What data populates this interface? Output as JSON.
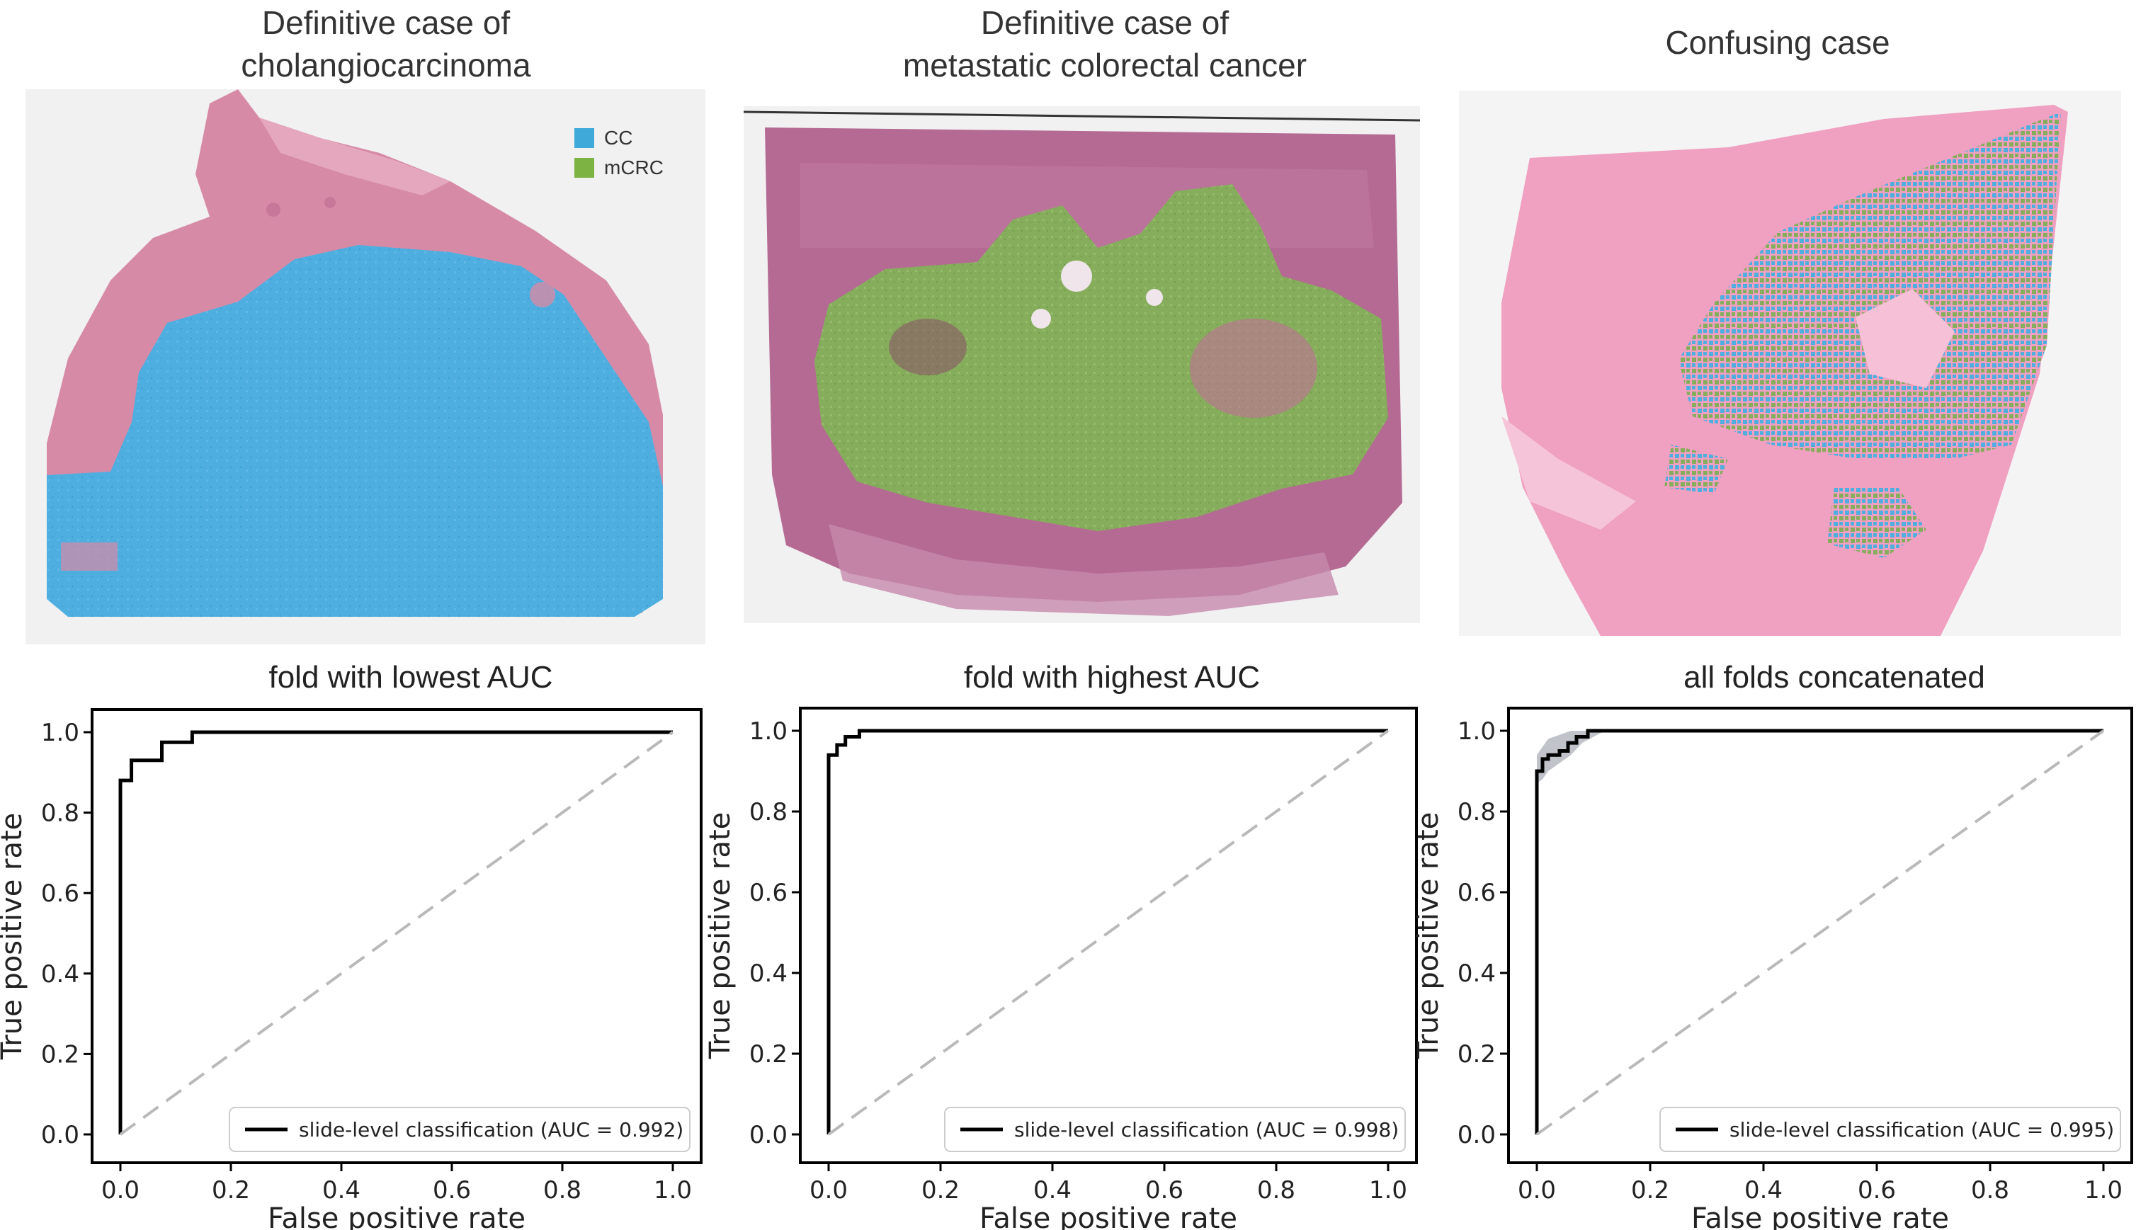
{
  "panels": [
    {
      "title_line1": "Definitive case of",
      "title_line2": "cholangiocarcinoma"
    },
    {
      "title_line1": "Definitive case of",
      "title_line2": "metastatic colorectal cancer"
    },
    {
      "title_line1": "Confusing case",
      "title_line2": ""
    }
  ],
  "legend": {
    "items": [
      {
        "label": "CC",
        "color": "#3fa9d9"
      },
      {
        "label": "mCRC",
        "color": "#7cb342"
      }
    ]
  },
  "colors": {
    "cc": "#4eaee0",
    "mcrc": "#86ad5c",
    "tissue_pink": "#d78aa6",
    "tissue_purple": "#b56a93",
    "tissue_bright": "#f0a0c0"
  },
  "chart_data": [
    {
      "type": "line",
      "title": "fold with lowest AUC",
      "xlabel": "False positive rate",
      "ylabel": "True positive rate",
      "xlim": [
        0,
        1
      ],
      "ylim": [
        0,
        1
      ],
      "xticks": [
        "0.0",
        "0.2",
        "0.4",
        "0.6",
        "0.8",
        "1.0"
      ],
      "yticks": [
        "0.0",
        "0.2",
        "0.4",
        "0.6",
        "0.8",
        "1.0"
      ],
      "series": [
        {
          "name": "slide-level classification (AUC = 0.992)",
          "x": [
            0,
            0,
            0.02,
            0.02,
            0.075,
            0.075,
            0.13,
            0.13,
            1.0
          ],
          "y": [
            0,
            0.88,
            0.88,
            0.93,
            0.93,
            0.975,
            0.975,
            1.0,
            1.0
          ]
        },
        {
          "name": "chance",
          "dashed": true,
          "x": [
            0,
            1
          ],
          "y": [
            0,
            1
          ]
        }
      ],
      "legend_label": "slide-level classification (AUC = 0.992)"
    },
    {
      "type": "line",
      "title": "fold with highest AUC",
      "xlabel": "False positive rate",
      "ylabel": "True positive rate",
      "xlim": [
        0,
        1
      ],
      "ylim": [
        0,
        1
      ],
      "xticks": [
        "0.0",
        "0.2",
        "0.4",
        "0.6",
        "0.8",
        "1.0"
      ],
      "yticks": [
        "0.0",
        "0.2",
        "0.4",
        "0.6",
        "0.8",
        "1.0"
      ],
      "series": [
        {
          "name": "slide-level classification (AUC = 0.998)",
          "x": [
            0,
            0,
            0.015,
            0.015,
            0.03,
            0.03,
            0.055,
            0.055,
            1.0
          ],
          "y": [
            0,
            0.94,
            0.94,
            0.965,
            0.965,
            0.985,
            0.985,
            1.0,
            1.0
          ]
        },
        {
          "name": "chance",
          "dashed": true,
          "x": [
            0,
            1
          ],
          "y": [
            0,
            1
          ]
        }
      ],
      "legend_label": "slide-level classification (AUC = 0.998)"
    },
    {
      "type": "line",
      "title": "all folds concatenated",
      "xlabel": "False positive rate",
      "ylabel": "True positive rate",
      "xlim": [
        0,
        1
      ],
      "ylim": [
        0,
        1
      ],
      "xticks": [
        "0.0",
        "0.2",
        "0.4",
        "0.6",
        "0.8",
        "1.0"
      ],
      "yticks": [
        "0.0",
        "0.2",
        "0.4",
        "0.6",
        "0.8",
        "1.0"
      ],
      "series": [
        {
          "name": "slide-level classification (AUC = 0.995)",
          "x": [
            0,
            0,
            0.01,
            0.01,
            0.02,
            0.02,
            0.04,
            0.04,
            0.055,
            0.055,
            0.07,
            0.07,
            0.09,
            0.09,
            1.0
          ],
          "y": [
            0,
            0.9,
            0.9,
            0.93,
            0.93,
            0.94,
            0.94,
            0.95,
            0.95,
            0.97,
            0.97,
            0.985,
            0.985,
            1.0,
            1.0
          ]
        },
        {
          "name": "chance",
          "dashed": true,
          "x": [
            0,
            1
          ],
          "y": [
            0,
            1
          ]
        }
      ],
      "confidence_band": {
        "x": [
          0,
          0.01,
          0.02,
          0.04,
          0.06,
          0.08,
          0.1,
          0.12
        ],
        "lower": [
          0.87,
          0.88,
          0.9,
          0.92,
          0.94,
          0.97,
          0.985,
          1.0
        ],
        "upper": [
          0.94,
          0.96,
          0.98,
          0.99,
          1.0,
          1.0,
          1.0,
          1.0
        ]
      },
      "legend_label": "slide-level classification (AUC = 0.995)"
    }
  ]
}
